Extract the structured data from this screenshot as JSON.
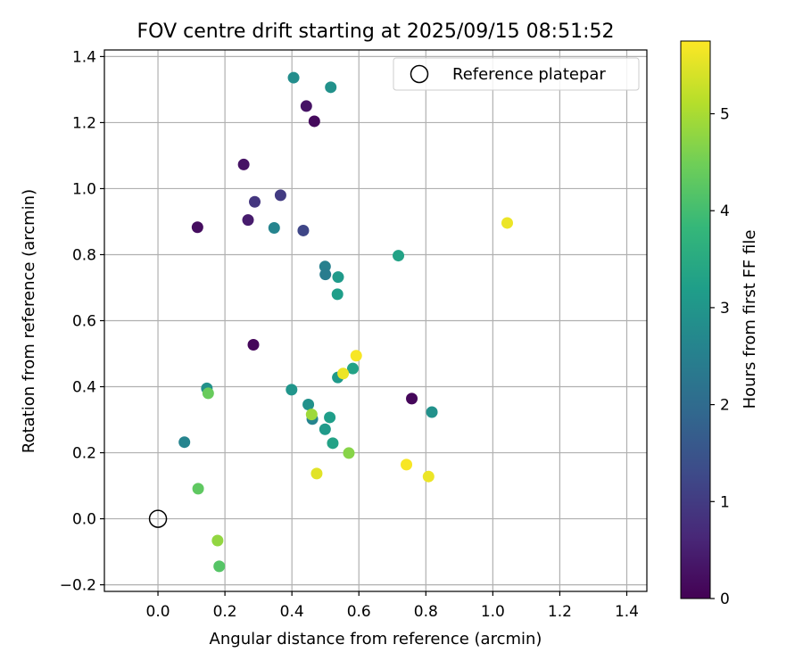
{
  "chart_data": {
    "type": "scatter",
    "title": "FOV centre drift starting at 2025/09/15 08:51:52",
    "xlabel": "Angular distance from reference (arcmin)",
    "ylabel": "Rotation from reference (arcmin)",
    "xlim": [
      -0.16,
      1.46
    ],
    "ylim": [
      -0.22,
      1.42
    ],
    "xticks": [
      0.0,
      0.2,
      0.4,
      0.6,
      0.8,
      1.0,
      1.2,
      1.4
    ],
    "xtick_labels": [
      "0.0",
      "0.2",
      "0.4",
      "0.6",
      "0.8",
      "1.0",
      "1.2",
      "1.4"
    ],
    "yticks": [
      -0.2,
      0.0,
      0.2,
      0.4,
      0.6,
      0.8,
      1.0,
      1.2,
      1.4
    ],
    "ytick_labels": [
      "−0.2",
      "0.0",
      "0.2",
      "0.4",
      "0.6",
      "0.8",
      "1.0",
      "1.2",
      "1.4"
    ],
    "grid": true,
    "legend": {
      "location": "top-right",
      "entries": [
        "Reference platepar"
      ]
    },
    "reference_point": {
      "x": 0.0,
      "y": 0.0
    },
    "colorbar": {
      "label": "Hours from first FF file",
      "colormap": "viridis",
      "range": [
        0,
        5.75
      ],
      "ticks": [
        0,
        1,
        2,
        3,
        4,
        5
      ],
      "tick_labels": [
        "0",
        "1",
        "2",
        "3",
        "4",
        "5"
      ]
    },
    "points": [
      {
        "x": 0.118,
        "y": 0.883,
        "hours": 0.2
      },
      {
        "x": 0.256,
        "y": 1.073,
        "hours": 0.3
      },
      {
        "x": 0.269,
        "y": 0.905,
        "hours": 0.45
      },
      {
        "x": 0.285,
        "y": 0.527,
        "hours": 0.1
      },
      {
        "x": 0.289,
        "y": 0.96,
        "hours": 0.9
      },
      {
        "x": 0.366,
        "y": 0.98,
        "hours": 1.0
      },
      {
        "x": 0.434,
        "y": 0.873,
        "hours": 1.2
      },
      {
        "x": 0.443,
        "y": 1.25,
        "hours": 0.3
      },
      {
        "x": 0.467,
        "y": 1.204,
        "hours": 0.15
      },
      {
        "x": 0.758,
        "y": 0.364,
        "hours": 0.1
      },
      {
        "x": 0.405,
        "y": 1.336,
        "hours": 2.8
      },
      {
        "x": 0.516,
        "y": 1.307,
        "hours": 2.9
      },
      {
        "x": 0.347,
        "y": 0.881,
        "hours": 2.6
      },
      {
        "x": 0.499,
        "y": 0.764,
        "hours": 2.5
      },
      {
        "x": 0.5,
        "y": 0.74,
        "hours": 2.4
      },
      {
        "x": 0.538,
        "y": 0.732,
        "hours": 3.1
      },
      {
        "x": 0.536,
        "y": 0.68,
        "hours": 3.2
      },
      {
        "x": 0.718,
        "y": 0.797,
        "hours": 3.3
      },
      {
        "x": 0.146,
        "y": 0.395,
        "hours": 2.9
      },
      {
        "x": 0.399,
        "y": 0.391,
        "hours": 3.0
      },
      {
        "x": 0.449,
        "y": 0.346,
        "hours": 2.9
      },
      {
        "x": 0.461,
        "y": 0.302,
        "hours": 2.6
      },
      {
        "x": 0.537,
        "y": 0.428,
        "hours": 3.1
      },
      {
        "x": 0.582,
        "y": 0.455,
        "hours": 3.3
      },
      {
        "x": 0.513,
        "y": 0.307,
        "hours": 3.2
      },
      {
        "x": 0.499,
        "y": 0.271,
        "hours": 3.1
      },
      {
        "x": 0.522,
        "y": 0.229,
        "hours": 3.3
      },
      {
        "x": 0.818,
        "y": 0.323,
        "hours": 2.9
      },
      {
        "x": 0.079,
        "y": 0.232,
        "hours": 2.6
      },
      {
        "x": 0.15,
        "y": 0.38,
        "hours": 4.4
      },
      {
        "x": 0.459,
        "y": 0.316,
        "hours": 4.9
      },
      {
        "x": 0.57,
        "y": 0.199,
        "hours": 4.7
      },
      {
        "x": 0.12,
        "y": 0.091,
        "hours": 4.3
      },
      {
        "x": 0.178,
        "y": -0.066,
        "hours": 4.8
      },
      {
        "x": 0.183,
        "y": -0.144,
        "hours": 4.2
      },
      {
        "x": 0.553,
        "y": 0.44,
        "hours": 5.6
      },
      {
        "x": 0.592,
        "y": 0.494,
        "hours": 5.7
      },
      {
        "x": 0.474,
        "y": 0.137,
        "hours": 5.5
      },
      {
        "x": 0.742,
        "y": 0.164,
        "hours": 5.7
      },
      {
        "x": 0.808,
        "y": 0.128,
        "hours": 5.6
      },
      {
        "x": 1.043,
        "y": 0.896,
        "hours": 5.6
      }
    ]
  }
}
